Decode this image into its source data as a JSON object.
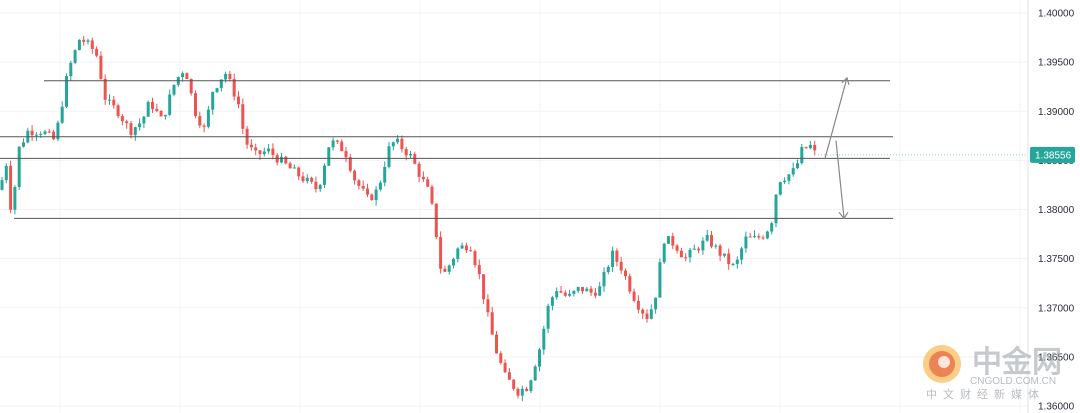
{
  "chart_data": {
    "type": "candlestick",
    "y_axis": {
      "ylim": [
        1.36,
        1.402
      ],
      "ticks": [
        "1.40000",
        "1.39500",
        "1.39000",
        "1.38500",
        "1.38000",
        "1.37500",
        "1.37000",
        "1.36500",
        "1.36000"
      ],
      "tick_values": [
        1.4,
        1.395,
        1.39,
        1.385,
        1.38,
        1.375,
        1.37,
        1.365,
        1.36
      ],
      "position": "right"
    },
    "current_price": {
      "value": 1.38556,
      "label": "1.38556"
    },
    "horizontal_levels": [
      1.3931,
      1.3874,
      1.3852,
      1.3791
    ],
    "scenario_arrows": [
      {
        "direction": "up",
        "target": 1.3934
      },
      {
        "direction": "down",
        "target": 1.3791
      }
    ],
    "colors": {
      "up": "#26a69a",
      "down": "#ef5350",
      "levels": "#555555",
      "price_tag": "#26a69a",
      "arrows": "#888888"
    },
    "grid": true,
    "series": [
      {
        "name": "",
        "anchors": [
          [
            0,
            1.382
          ],
          [
            6,
            1.385
          ],
          [
            12,
            1.379
          ],
          [
            18,
            1.386
          ],
          [
            28,
            1.388
          ],
          [
            42,
            1.388
          ],
          [
            55,
            1.387
          ],
          [
            68,
            1.394
          ],
          [
            80,
            1.3975
          ],
          [
            96,
            1.396
          ],
          [
            106,
            1.391
          ],
          [
            118,
            1.39
          ],
          [
            130,
            1.388
          ],
          [
            142,
            1.389
          ],
          [
            150,
            1.391
          ],
          [
            162,
            1.389
          ],
          [
            175,
            1.393
          ],
          [
            185,
            1.3945
          ],
          [
            195,
            1.39
          ],
          [
            205,
            1.388
          ],
          [
            212,
            1.392
          ],
          [
            225,
            1.394
          ],
          [
            238,
            1.391
          ],
          [
            245,
            1.387
          ],
          [
            255,
            1.3855
          ],
          [
            268,
            1.386
          ],
          [
            280,
            1.385
          ],
          [
            292,
            1.384
          ],
          [
            305,
            1.383
          ],
          [
            318,
            1.382
          ],
          [
            330,
            1.387
          ],
          [
            345,
            1.386
          ],
          [
            355,
            1.383
          ],
          [
            368,
            1.381
          ],
          [
            378,
            1.382
          ],
          [
            388,
            1.386
          ],
          [
            395,
            1.387
          ],
          [
            410,
            1.3855
          ],
          [
            420,
            1.3835
          ],
          [
            430,
            1.3815
          ],
          [
            437,
            1.377
          ],
          [
            442,
            1.373
          ],
          [
            450,
            1.3745
          ],
          [
            458,
            1.376
          ],
          [
            470,
            1.3765
          ],
          [
            480,
            1.373
          ],
          [
            488,
            1.369
          ],
          [
            495,
            1.366
          ],
          [
            505,
            1.363
          ],
          [
            518,
            1.3615
          ],
          [
            528,
            1.362
          ],
          [
            540,
            1.366
          ],
          [
            548,
            1.37
          ],
          [
            556,
            1.372
          ],
          [
            568,
            1.371
          ],
          [
            580,
            1.372
          ],
          [
            592,
            1.3715
          ],
          [
            600,
            1.372
          ],
          [
            612,
            1.3755
          ],
          [
            622,
            1.374
          ],
          [
            632,
            1.3715
          ],
          [
            640,
            1.37
          ],
          [
            648,
            1.369
          ],
          [
            655,
            1.371
          ],
          [
            664,
            1.377
          ],
          [
            675,
            1.3765
          ],
          [
            685,
            1.375
          ],
          [
            696,
            1.376
          ],
          [
            708,
            1.377
          ],
          [
            716,
            1.376
          ],
          [
            725,
            1.375
          ],
          [
            735,
            1.374
          ],
          [
            745,
            1.377
          ],
          [
            755,
            1.377
          ],
          [
            765,
            1.3775
          ],
          [
            772,
            1.379
          ],
          [
            778,
            1.383
          ],
          [
            788,
            1.3835
          ],
          [
            795,
            1.384
          ],
          [
            802,
            1.386
          ],
          [
            810,
            1.3865
          ],
          [
            818,
            1.3852
          ]
        ]
      }
    ]
  },
  "watermark": {
    "brand": "中金网",
    "site": "CNGOLD.COM.CN",
    "tagline": "中文财经新媒体"
  }
}
